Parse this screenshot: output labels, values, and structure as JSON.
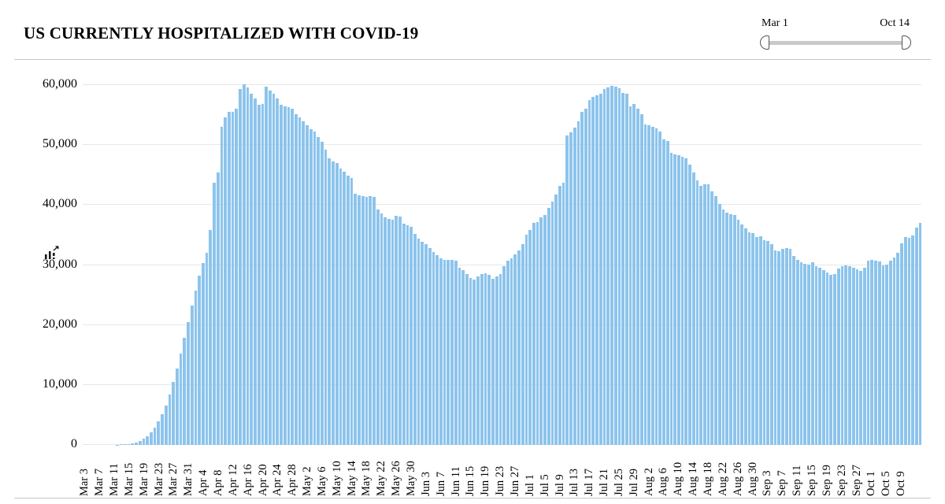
{
  "header": {
    "title": "US CURRENTLY HOSPITALIZED WITH COVID-19"
  },
  "range_slider": {
    "start_label": "Mar 1",
    "end_label": "Oct 14"
  },
  "icons": {
    "cursor": "chart-cursor-icon"
  },
  "chart_data": {
    "type": "bar",
    "title": "US CURRENTLY HOSPITALIZED WITH COVID-19",
    "x_frequency": "daily",
    "x_start": "Mar 3",
    "x_end": "Oct 14",
    "tick_every": 4,
    "x_tick_labels": [
      "Mar 3",
      "Mar 7",
      "Mar 11",
      "Mar 15",
      "Mar 19",
      "Mar 23",
      "Mar 27",
      "Mar 31",
      "Apr 4",
      "Apr 8",
      "Apr 12",
      "Apr 16",
      "Apr 20",
      "Apr 24",
      "Apr 28",
      "May 2",
      "May 6",
      "May 10",
      "May 14",
      "May 18",
      "May 22",
      "May 26",
      "May 30",
      "Jun 3",
      "Jun 7",
      "Jun 11",
      "Jun 15",
      "Jun 19",
      "Jun 23",
      "Jun 27",
      "Jul 1",
      "Jul 5",
      "Jul 9",
      "Jul 13",
      "Jul 17",
      "Jul 21",
      "Jul 25",
      "Jul 29",
      "Aug 2",
      "Aug 6",
      "Aug 10",
      "Aug 14",
      "Aug 18",
      "Aug 22",
      "Aug 26",
      "Aug 30",
      "Sep 3",
      "Sep 7",
      "Sep 11",
      "Sep 15",
      "Sep 19",
      "Sep 23",
      "Sep 27",
      "Oct 1",
      "Oct 5",
      "Oct 9"
    ],
    "y_tick_labels": [
      "0",
      "10,000",
      "20,000",
      "30,000",
      "40,000",
      "50,000",
      "60,000"
    ],
    "y_tick_values": [
      0,
      10000,
      20000,
      30000,
      40000,
      50000,
      60000
    ],
    "ylim": [
      0,
      60000
    ],
    "grid": true,
    "bar_color": "#8cc4ec",
    "gridline_color": "#e7e7e7",
    "values": [
      0,
      0,
      0,
      0,
      0,
      0,
      0,
      0,
      0,
      50,
      80,
      120,
      180,
      280,
      420,
      650,
      1000,
      1500,
      2100,
      2900,
      3900,
      5100,
      6600,
      8400,
      10500,
      12800,
      15200,
      17800,
      20500,
      23200,
      25800,
      28200,
      30300,
      32100,
      35900,
      43700,
      45400,
      53000,
      54600,
      55500,
      55600,
      56000,
      59400,
      60100,
      59600,
      58500,
      57800,
      56700,
      56800,
      59700,
      59100,
      58500,
      57800,
      56700,
      56500,
      56300,
      56000,
      55200,
      54600,
      53900,
      53300,
      52700,
      52200,
      51300,
      50500,
      49200,
      47800,
      47300,
      47000,
      46100,
      45600,
      44900,
      44500,
      41900,
      41600,
      41500,
      41400,
      41500,
      41300,
      39200,
      38600,
      37900,
      37700,
      37600,
      38200,
      38100,
      36900,
      36600,
      36400,
      35200,
      34400,
      33900,
      33500,
      32800,
      32200,
      31700,
      31100,
      30900,
      30800,
      30800,
      30700,
      29600,
      29200,
      28500,
      27900,
      27600,
      28100,
      28500,
      28600,
      28300,
      27700,
      28100,
      28500,
      29800,
      30700,
      31100,
      31800,
      32400,
      33500,
      35000,
      35900,
      37000,
      37200,
      38000,
      38400,
      39500,
      40600,
      41800,
      43200,
      43700,
      51600,
      52100,
      52900,
      53900,
      55600,
      56000,
      57500,
      58000,
      58300,
      58600,
      59400,
      59600,
      59900,
      59800,
      59500,
      58700,
      58500,
      56500,
      56800,
      56100,
      55200,
      53500,
      53300,
      53000,
      52800,
      52300,
      50900,
      50700,
      48700,
      48400,
      48300,
      48000,
      47800,
      46700,
      45400,
      44100,
      43200,
      43500,
      43400,
      42300,
      41500,
      40200,
      39300,
      38700,
      38500,
      38300,
      37600,
      36700,
      36100,
      35400,
      35300,
      34600,
      34800,
      34100,
      34000,
      33500,
      32400,
      32300,
      32700,
      32800,
      32700,
      31500,
      30900,
      30500,
      30200,
      30100,
      30400,
      29800,
      29600,
      29200,
      28800,
      28400,
      28500,
      29400,
      29800,
      29900,
      29800,
      29600,
      29300,
      29000,
      29600,
      30700,
      30900,
      30700,
      30600,
      29900,
      30100,
      30700,
      31200,
      32000,
      33600,
      34600,
      34500,
      34900,
      36300,
      37000
    ]
  }
}
